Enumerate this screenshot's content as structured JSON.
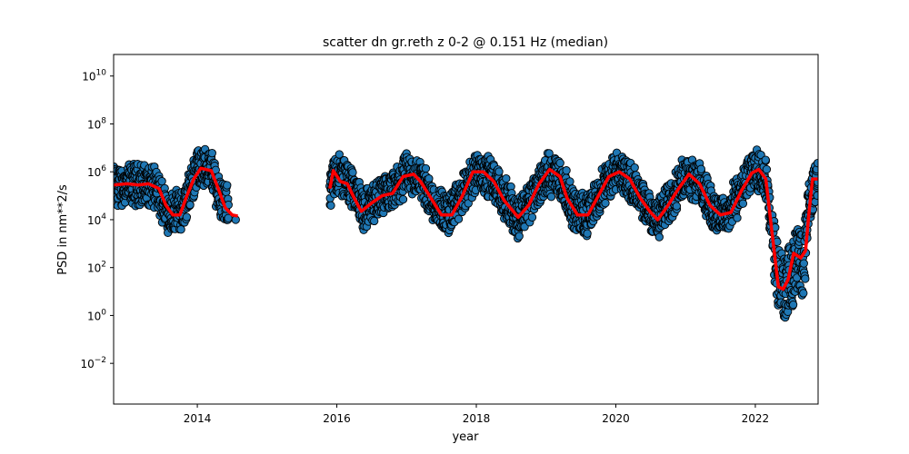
{
  "chart_data": {
    "type": "scatter",
    "title": "scatter dn gr.reth z 0-2 @ 0.151 Hz (median)",
    "xlabel": "year",
    "ylabel": "PSD in nm**2/s",
    "xlim": [
      2012.8,
      2022.9
    ],
    "ylim_log10": [
      -3.7,
      10.9
    ],
    "yscale": "log",
    "x_ticks": [
      2014,
      2016,
      2018,
      2020,
      2022
    ],
    "x_tick_labels": [
      "2014",
      "2016",
      "2018",
      "2020",
      "2022"
    ],
    "y_ticks_exp": [
      -2,
      0,
      2,
      4,
      6,
      8,
      10
    ],
    "y_tick_base": "10",
    "grid": false,
    "colors": {
      "points": "#1f77b4",
      "point_edge": "#000000",
      "median": "#ff0000"
    },
    "series": [
      {
        "kind": "scatter",
        "segments": [
          {
            "x_start": 2012.8,
            "x_end": 2014.45,
            "note": "dense daily points"
          },
          {
            "x_start": 2015.9,
            "x_end": 2022.9,
            "note": "dense daily points"
          }
        ],
        "log10_psd_median": [
          [
            2012.8,
            5.4
          ],
          [
            2013.2,
            5.5
          ],
          [
            2013.4,
            5.3
          ],
          [
            2013.6,
            4.3
          ],
          [
            2013.8,
            4.4
          ],
          [
            2014.0,
            6.2
          ],
          [
            2014.2,
            6.1
          ],
          [
            2014.35,
            4.8
          ],
          [
            2014.55,
            4.2
          ],
          [
            2015.9,
            5.3
          ],
          [
            2016.0,
            6.0
          ],
          [
            2016.2,
            5.5
          ],
          [
            2016.4,
            4.4
          ],
          [
            2016.6,
            4.9
          ],
          [
            2016.8,
            5.1
          ],
          [
            2017.0,
            5.9
          ],
          [
            2017.2,
            5.7
          ],
          [
            2017.4,
            4.7
          ],
          [
            2017.6,
            4.2
          ],
          [
            2017.8,
            5.0
          ],
          [
            2018.0,
            6.1
          ],
          [
            2018.2,
            5.8
          ],
          [
            2018.4,
            4.9
          ],
          [
            2018.6,
            4.1
          ],
          [
            2018.8,
            4.9
          ],
          [
            2019.0,
            5.9
          ],
          [
            2019.2,
            5.8
          ],
          [
            2019.4,
            4.4
          ],
          [
            2019.6,
            4.2
          ],
          [
            2019.8,
            5.3
          ],
          [
            2020.0,
            6.0
          ],
          [
            2020.2,
            5.7
          ],
          [
            2020.4,
            4.6
          ],
          [
            2020.6,
            4.0
          ],
          [
            2020.8,
            4.9
          ],
          [
            2021.0,
            5.9
          ],
          [
            2021.2,
            5.6
          ],
          [
            2021.4,
            4.3
          ],
          [
            2021.6,
            4.2
          ],
          [
            2021.8,
            5.3
          ],
          [
            2022.0,
            6.1
          ],
          [
            2022.15,
            5.7
          ],
          [
            2022.3,
            2.0
          ],
          [
            2022.4,
            1.1
          ],
          [
            2022.5,
            1.5
          ],
          [
            2022.6,
            2.5
          ],
          [
            2022.7,
            2.1
          ],
          [
            2022.75,
            4.5
          ],
          [
            2022.9,
            5.8
          ]
        ]
      },
      {
        "kind": "line",
        "segments": [
          {
            "points": [
              [
                2012.8,
                5.45
              ],
              [
                2013.0,
                5.5
              ],
              [
                2013.15,
                5.45
              ],
              [
                2013.3,
                5.5
              ],
              [
                2013.45,
                5.3
              ],
              [
                2013.55,
                4.6
              ],
              [
                2013.65,
                4.2
              ],
              [
                2013.75,
                4.2
              ],
              [
                2013.85,
                5.0
              ],
              [
                2013.95,
                5.7
              ],
              [
                2014.05,
                6.15
              ],
              [
                2014.2,
                6.05
              ],
              [
                2014.3,
                5.3
              ],
              [
                2014.4,
                4.5
              ],
              [
                2014.5,
                4.2
              ],
              [
                2014.58,
                4.15
              ]
            ]
          },
          {
            "points": [
              [
                2015.9,
                5.3
              ],
              [
                2015.95,
                6.05
              ],
              [
                2016.05,
                5.6
              ],
              [
                2016.15,
                5.5
              ],
              [
                2016.25,
                4.9
              ],
              [
                2016.35,
                4.35
              ],
              [
                2016.5,
                4.7
              ],
              [
                2016.65,
                5.0
              ],
              [
                2016.8,
                5.1
              ],
              [
                2016.95,
                5.8
              ],
              [
                2017.1,
                5.9
              ],
              [
                2017.2,
                5.6
              ],
              [
                2017.35,
                4.9
              ],
              [
                2017.5,
                4.2
              ],
              [
                2017.65,
                4.2
              ],
              [
                2017.8,
                5.0
              ],
              [
                2017.95,
                6.0
              ],
              [
                2018.1,
                6.0
              ],
              [
                2018.25,
                5.6
              ],
              [
                2018.4,
                4.8
              ],
              [
                2018.6,
                4.1
              ],
              [
                2018.75,
                4.6
              ],
              [
                2018.9,
                5.5
              ],
              [
                2019.05,
                6.1
              ],
              [
                2019.2,
                5.8
              ],
              [
                2019.3,
                4.9
              ],
              [
                2019.45,
                4.2
              ],
              [
                2019.6,
                4.2
              ],
              [
                2019.75,
                5.0
              ],
              [
                2019.9,
                5.8
              ],
              [
                2020.05,
                6.0
              ],
              [
                2020.2,
                5.7
              ],
              [
                2020.35,
                4.9
              ],
              [
                2020.5,
                4.3
              ],
              [
                2020.6,
                4.0
              ],
              [
                2020.75,
                4.6
              ],
              [
                2020.9,
                5.3
              ],
              [
                2021.05,
                5.9
              ],
              [
                2021.2,
                5.5
              ],
              [
                2021.35,
                4.6
              ],
              [
                2021.5,
                4.2
              ],
              [
                2021.65,
                4.3
              ],
              [
                2021.8,
                5.2
              ],
              [
                2021.95,
                5.95
              ],
              [
                2022.05,
                6.1
              ],
              [
                2022.15,
                5.7
              ],
              [
                2022.25,
                3.2
              ],
              [
                2022.33,
                1.2
              ],
              [
                2022.4,
                1.1
              ],
              [
                2022.47,
                1.5
              ],
              [
                2022.55,
                2.6
              ],
              [
                2022.65,
                2.4
              ],
              [
                2022.72,
                2.7
              ],
              [
                2022.77,
                4.3
              ],
              [
                2022.82,
                5.7
              ],
              [
                2022.9,
                5.7
              ]
            ]
          }
        ]
      }
    ]
  }
}
